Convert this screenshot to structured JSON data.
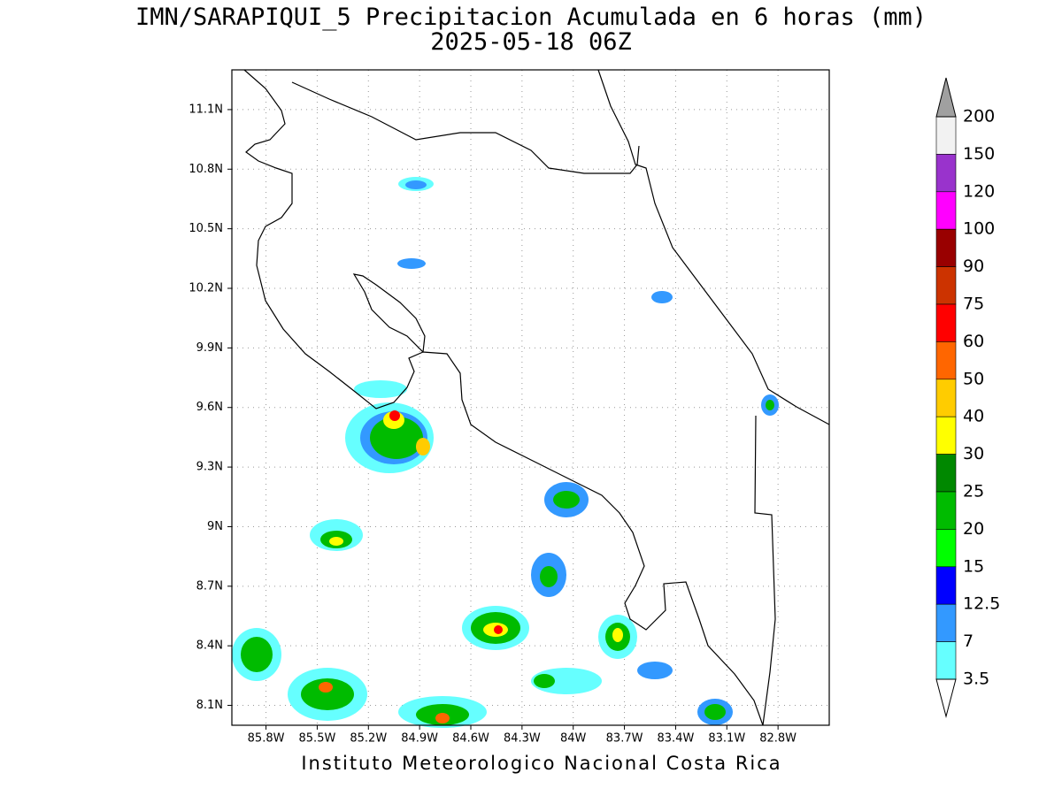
{
  "header": {
    "title": "IMN/SARAPIQUI_5 Precipitacion Acumulada en 6 horas (mm)",
    "subtitle": "2025-05-18 06Z"
  },
  "map": {
    "lat_range": [
      8.0,
      11.3
    ],
    "lon_range": [
      -86.0,
      -82.5
    ],
    "grid": true,
    "lat_ticks": [
      {
        "value": 11.1,
        "label": "11.1N"
      },
      {
        "value": 10.8,
        "label": "10.8N"
      },
      {
        "value": 10.5,
        "label": "10.5N"
      },
      {
        "value": 10.2,
        "label": "10.2N"
      },
      {
        "value": 9.9,
        "label": "9.9N"
      },
      {
        "value": 9.6,
        "label": "9.6N"
      },
      {
        "value": 9.3,
        "label": "9.3N"
      },
      {
        "value": 9,
        "label": "9N"
      },
      {
        "value": 8.7,
        "label": "8.7N"
      },
      {
        "value": 8.4,
        "label": "8.4N"
      },
      {
        "value": 8.1,
        "label": "8.1N"
      }
    ],
    "lon_ticks": [
      {
        "value": -85.8,
        "label": "85.8W"
      },
      {
        "value": -85.5,
        "label": "85.5W"
      },
      {
        "value": -85.2,
        "label": "85.2W"
      },
      {
        "value": -84.9,
        "label": "84.9W"
      },
      {
        "value": -84.6,
        "label": "84.6W"
      },
      {
        "value": -84.3,
        "label": "84.3W"
      },
      {
        "value": -84,
        "label": "84W"
      },
      {
        "value": -83.7,
        "label": "83.7W"
      },
      {
        "value": -83.4,
        "label": "83.4W"
      },
      {
        "value": -83.1,
        "label": "83.1W"
      },
      {
        "value": -82.8,
        "label": "82.8W"
      }
    ]
  },
  "colorbar": {
    "levels": [
      200,
      150,
      120,
      100,
      90,
      75,
      60,
      50,
      40,
      30,
      25,
      20,
      15,
      12.5,
      7,
      3.5
    ],
    "colors": [
      "#f2f2f2",
      "#9933cc",
      "#ff00ff",
      "#990000",
      "#cc3300",
      "#ff0000",
      "#ff6600",
      "#ffcc00",
      "#ffff00",
      "#008800",
      "#00bb00",
      "#00ff00",
      "#0000ff",
      "#3399ff",
      "#66ffff"
    ],
    "over_color": "#a0a0a0",
    "under_color": "#ffffff"
  },
  "footer": "Instituto Meteorologico Nacional Costa Rica"
}
